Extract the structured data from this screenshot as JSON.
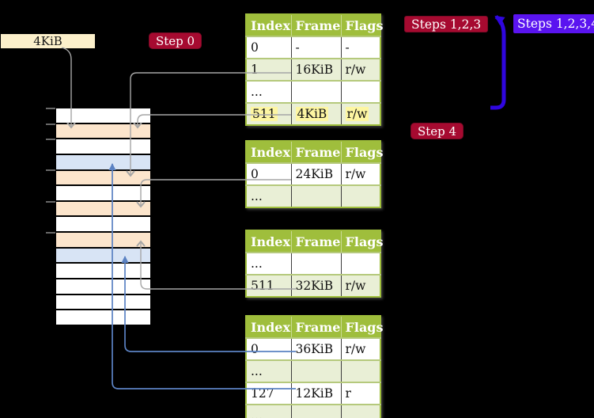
{
  "colors": {
    "background": "#000000",
    "table_header_bg": "#9fbe3c",
    "table_row_alt_bg": "#e9efd6",
    "table_border": "#9fbe3c",
    "highlight_yellow": "#fdf6a2",
    "mem_white": "#ffffff",
    "mem_peach": "#fce5cc",
    "mem_blue": "#d8e4f5",
    "label_cream_bg": "#fcf0cb",
    "step_red_bg": "#a60a30",
    "step_violet_bg": "#5a14f0",
    "connector_gray": "#a6a6a6",
    "connector_blue": "#5b82c3",
    "big_arrow_violet": "#2f06df"
  },
  "labels": {
    "page_size": "4KiB",
    "step0": "Step 0",
    "steps123": "Steps 1,2,3",
    "steps1234": "Steps 1,2,3,4",
    "step4": "Step 4"
  },
  "tables": [
    {
      "name": "page-table-top",
      "headers": [
        "Index",
        "Frame",
        "Flags"
      ],
      "rows": [
        {
          "cells": [
            "0",
            "-",
            "-"
          ]
        },
        {
          "cells": [
            "1",
            "16KiB",
            "r/w"
          ]
        },
        {
          "cells": [
            "...",
            "",
            ""
          ]
        },
        {
          "cells": [
            "511",
            "4KiB",
            "r/w"
          ],
          "highlight": true
        }
      ]
    },
    {
      "name": "page-table-second",
      "headers": [
        "Index",
        "Frame",
        "Flags"
      ],
      "rows": [
        {
          "cells": [
            "0",
            "24KiB",
            "r/w"
          ]
        },
        {
          "cells": [
            "...",
            "",
            ""
          ]
        }
      ]
    },
    {
      "name": "page-table-third",
      "headers": [
        "Index",
        "Frame",
        "Flags"
      ],
      "rows": [
        {
          "cells": [
            "...",
            "",
            ""
          ]
        },
        {
          "cells": [
            "511",
            "32KiB",
            "r/w"
          ]
        }
      ]
    },
    {
      "name": "page-table-bottom",
      "headers": [
        "Index",
        "Frame",
        "Flags"
      ],
      "rows": [
        {
          "cells": [
            "0",
            "36KiB",
            "r/w"
          ]
        },
        {
          "cells": [
            "...",
            "",
            ""
          ]
        },
        {
          "cells": [
            "127",
            "12KiB",
            "r"
          ]
        },
        {
          "cells": [
            "...",
            "",
            ""
          ]
        }
      ]
    }
  ],
  "memory": {
    "rows": [
      "white",
      "peach",
      "white",
      "blue",
      "peach",
      "white",
      "peach",
      "white",
      "peach",
      "blue",
      "white",
      "white",
      "white",
      "white"
    ]
  }
}
